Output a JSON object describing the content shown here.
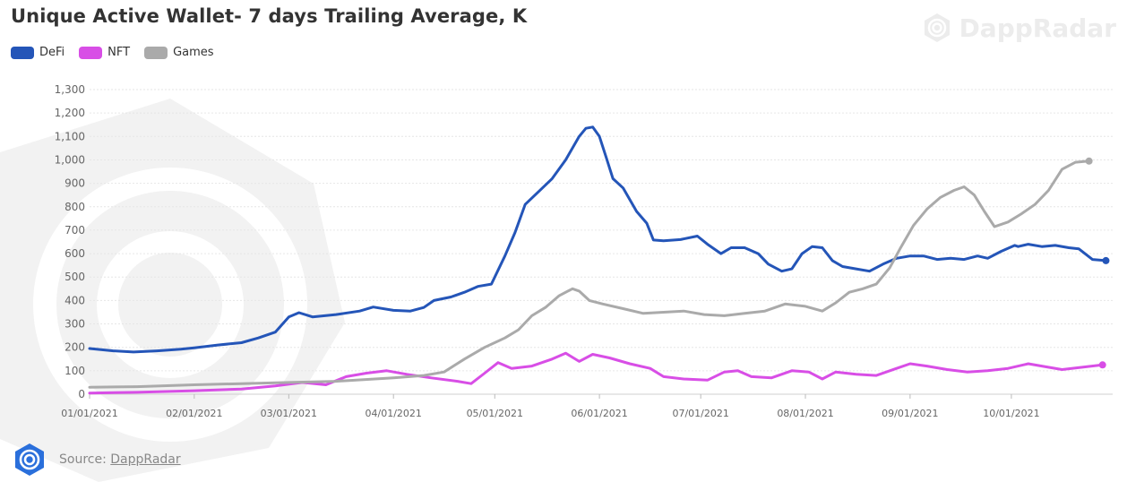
{
  "title": "Unique Active Wallet- 7 days Trailing Average, K",
  "brand": {
    "name": "DappRadar",
    "icon": "dappradar-logo-icon"
  },
  "source": {
    "prefix": "Source: ",
    "link_text": "DappRadar"
  },
  "chart_data": {
    "type": "line",
    "title": "Unique Active Wallet- 7 days Trailing Average, K",
    "xlabel": "",
    "ylabel": "",
    "ylim": [
      0,
      1300
    ],
    "yticks": [
      0,
      100,
      200,
      300,
      400,
      500,
      600,
      700,
      800,
      900,
      1000,
      1100,
      1200,
      1300
    ],
    "ytick_labels": [
      "0",
      "100",
      "200",
      "300",
      "400",
      "500",
      "600",
      "700",
      "800",
      "900",
      "1,000",
      "1,100",
      "1,200",
      "1,300"
    ],
    "xlim": [
      "2021-01-01",
      "2021-10-31"
    ],
    "xticks": [
      "2021-01-01",
      "2021-02-01",
      "2021-03-01",
      "2021-04-01",
      "2021-05-01",
      "2021-06-01",
      "2021-07-01",
      "2021-08-01",
      "2021-09-01",
      "2021-10-01"
    ],
    "xtick_labels": [
      "01/01/2021",
      "02/01/2021",
      "03/01/2021",
      "04/01/2021",
      "05/01/2021",
      "06/01/2021",
      "07/01/2021",
      "08/01/2021",
      "09/01/2021",
      "10/01/2021"
    ],
    "grid": true,
    "legend": "top-left",
    "series": [
      {
        "name": "DeFi",
        "color": "#2455b8",
        "points": [
          [
            "2021-01-01",
            195
          ],
          [
            "2021-01-08",
            185
          ],
          [
            "2021-01-14",
            180
          ],
          [
            "2021-01-21",
            185
          ],
          [
            "2021-01-28",
            192
          ],
          [
            "2021-02-01",
            198
          ],
          [
            "2021-02-08",
            210
          ],
          [
            "2021-02-15",
            220
          ],
          [
            "2021-02-20",
            240
          ],
          [
            "2021-02-25",
            265
          ],
          [
            "2021-03-01",
            330
          ],
          [
            "2021-03-04",
            348
          ],
          [
            "2021-03-08",
            330
          ],
          [
            "2021-03-15",
            340
          ],
          [
            "2021-03-22",
            355
          ],
          [
            "2021-03-26",
            372
          ],
          [
            "2021-04-01",
            358
          ],
          [
            "2021-04-06",
            355
          ],
          [
            "2021-04-10",
            370
          ],
          [
            "2021-04-13",
            400
          ],
          [
            "2021-04-18",
            415
          ],
          [
            "2021-04-22",
            435
          ],
          [
            "2021-04-26",
            460
          ],
          [
            "2021-04-30",
            470
          ],
          [
            "2021-05-04",
            590
          ],
          [
            "2021-05-07",
            690
          ],
          [
            "2021-05-10",
            810
          ],
          [
            "2021-05-14",
            865
          ],
          [
            "2021-05-18",
            920
          ],
          [
            "2021-05-22",
            1000
          ],
          [
            "2021-05-26",
            1100
          ],
          [
            "2021-05-28",
            1135
          ],
          [
            "2021-05-30",
            1140
          ],
          [
            "2021-06-01",
            1100
          ],
          [
            "2021-06-03",
            1010
          ],
          [
            "2021-06-05",
            920
          ],
          [
            "2021-06-08",
            880
          ],
          [
            "2021-06-12",
            780
          ],
          [
            "2021-06-15",
            730
          ],
          [
            "2021-06-17",
            658
          ],
          [
            "2021-06-20",
            655
          ],
          [
            "2021-06-25",
            660
          ],
          [
            "2021-06-30",
            675
          ],
          [
            "2021-07-03",
            640
          ],
          [
            "2021-07-07",
            600
          ],
          [
            "2021-07-10",
            625
          ],
          [
            "2021-07-14",
            625
          ],
          [
            "2021-07-18",
            600
          ],
          [
            "2021-07-21",
            555
          ],
          [
            "2021-07-25",
            525
          ],
          [
            "2021-07-28",
            535
          ],
          [
            "2021-07-31",
            600
          ],
          [
            "2021-08-03",
            630
          ],
          [
            "2021-08-06",
            625
          ],
          [
            "2021-08-09",
            570
          ],
          [
            "2021-08-12",
            545
          ],
          [
            "2021-08-16",
            535
          ],
          [
            "2021-08-20",
            525
          ],
          [
            "2021-08-24",
            555
          ],
          [
            "2021-08-28",
            580
          ],
          [
            "2021-09-01",
            590
          ],
          [
            "2021-09-05",
            590
          ],
          [
            "2021-09-09",
            575
          ],
          [
            "2021-09-13",
            580
          ],
          [
            "2021-09-17",
            575
          ],
          [
            "2021-09-21",
            590
          ],
          [
            "2021-09-24",
            580
          ],
          [
            "2021-09-28",
            610
          ],
          [
            "2021-10-02",
            635
          ],
          [
            "2021-10-06",
            640
          ],
          [
            "2021-10-10",
            630
          ],
          [
            "2021-10-14",
            635
          ],
          [
            "2021-10-18",
            625
          ],
          [
            "2021-10-21",
            620
          ],
          [
            "2021-10-25",
            575
          ],
          [
            "2021-10-29",
            570
          ],
          [
            "2021-10-03",
            630
          ]
        ]
      },
      {
        "name": "NFT",
        "color": "#d84ee6",
        "points": [
          [
            "2021-01-01",
            5
          ],
          [
            "2021-01-15",
            8
          ],
          [
            "2021-02-01",
            15
          ],
          [
            "2021-02-15",
            22
          ],
          [
            "2021-02-25",
            35
          ],
          [
            "2021-03-05",
            50
          ],
          [
            "2021-03-12",
            40
          ],
          [
            "2021-03-18",
            75
          ],
          [
            "2021-03-24",
            90
          ],
          [
            "2021-03-30",
            100
          ],
          [
            "2021-04-05",
            85
          ],
          [
            "2021-04-12",
            70
          ],
          [
            "2021-04-20",
            55
          ],
          [
            "2021-04-24",
            45
          ],
          [
            "2021-04-28",
            90
          ],
          [
            "2021-05-02",
            135
          ],
          [
            "2021-05-06",
            110
          ],
          [
            "2021-05-12",
            120
          ],
          [
            "2021-05-18",
            150
          ],
          [
            "2021-05-22",
            175
          ],
          [
            "2021-05-26",
            140
          ],
          [
            "2021-05-30",
            170
          ],
          [
            "2021-06-04",
            155
          ],
          [
            "2021-06-10",
            130
          ],
          [
            "2021-06-16",
            110
          ],
          [
            "2021-06-20",
            75
          ],
          [
            "2021-06-26",
            65
          ],
          [
            "2021-07-03",
            60
          ],
          [
            "2021-07-08",
            95
          ],
          [
            "2021-07-12",
            100
          ],
          [
            "2021-07-16",
            75
          ],
          [
            "2021-07-22",
            70
          ],
          [
            "2021-07-28",
            100
          ],
          [
            "2021-08-02",
            95
          ],
          [
            "2021-08-06",
            65
          ],
          [
            "2021-08-10",
            95
          ],
          [
            "2021-08-16",
            85
          ],
          [
            "2021-08-22",
            80
          ],
          [
            "2021-08-28",
            110
          ],
          [
            "2021-09-01",
            130
          ],
          [
            "2021-09-06",
            120
          ],
          [
            "2021-09-12",
            105
          ],
          [
            "2021-09-18",
            95
          ],
          [
            "2021-09-24",
            100
          ],
          [
            "2021-09-30",
            110
          ],
          [
            "2021-10-06",
            130
          ],
          [
            "2021-10-10",
            120
          ],
          [
            "2021-10-16",
            105
          ],
          [
            "2021-10-22",
            115
          ],
          [
            "2021-10-28",
            125
          ]
        ]
      },
      {
        "name": "Games",
        "color": "#aaaaaa",
        "points": [
          [
            "2021-01-01",
            30
          ],
          [
            "2021-01-15",
            32
          ],
          [
            "2021-02-01",
            40
          ],
          [
            "2021-02-15",
            45
          ],
          [
            "2021-03-01",
            50
          ],
          [
            "2021-03-15",
            55
          ],
          [
            "2021-04-01",
            70
          ],
          [
            "2021-04-10",
            80
          ],
          [
            "2021-04-16",
            95
          ],
          [
            "2021-04-22",
            150
          ],
          [
            "2021-04-28",
            200
          ],
          [
            "2021-05-04",
            240
          ],
          [
            "2021-05-08",
            275
          ],
          [
            "2021-05-12",
            335
          ],
          [
            "2021-05-16",
            370
          ],
          [
            "2021-05-20",
            420
          ],
          [
            "2021-05-24",
            450
          ],
          [
            "2021-05-26",
            440
          ],
          [
            "2021-05-29",
            400
          ],
          [
            "2021-06-02",
            385
          ],
          [
            "2021-06-08",
            365
          ],
          [
            "2021-06-14",
            345
          ],
          [
            "2021-06-20",
            350
          ],
          [
            "2021-06-26",
            355
          ],
          [
            "2021-07-02",
            340
          ],
          [
            "2021-07-08",
            335
          ],
          [
            "2021-07-14",
            345
          ],
          [
            "2021-07-20",
            355
          ],
          [
            "2021-07-26",
            385
          ],
          [
            "2021-08-01",
            375
          ],
          [
            "2021-08-06",
            355
          ],
          [
            "2021-08-10",
            390
          ],
          [
            "2021-08-14",
            435
          ],
          [
            "2021-08-18",
            450
          ],
          [
            "2021-08-22",
            470
          ],
          [
            "2021-08-26",
            540
          ],
          [
            "2021-08-29",
            620
          ],
          [
            "2021-09-02",
            720
          ],
          [
            "2021-09-06",
            790
          ],
          [
            "2021-09-10",
            840
          ],
          [
            "2021-09-14",
            870
          ],
          [
            "2021-09-17",
            885
          ],
          [
            "2021-09-20",
            850
          ],
          [
            "2021-09-23",
            780
          ],
          [
            "2021-09-26",
            715
          ],
          [
            "2021-09-30",
            735
          ],
          [
            "2021-10-04",
            770
          ],
          [
            "2021-10-08",
            810
          ],
          [
            "2021-10-12",
            870
          ],
          [
            "2021-10-16",
            960
          ],
          [
            "2021-10-20",
            990
          ],
          [
            "2021-10-24",
            995
          ]
        ]
      }
    ]
  }
}
